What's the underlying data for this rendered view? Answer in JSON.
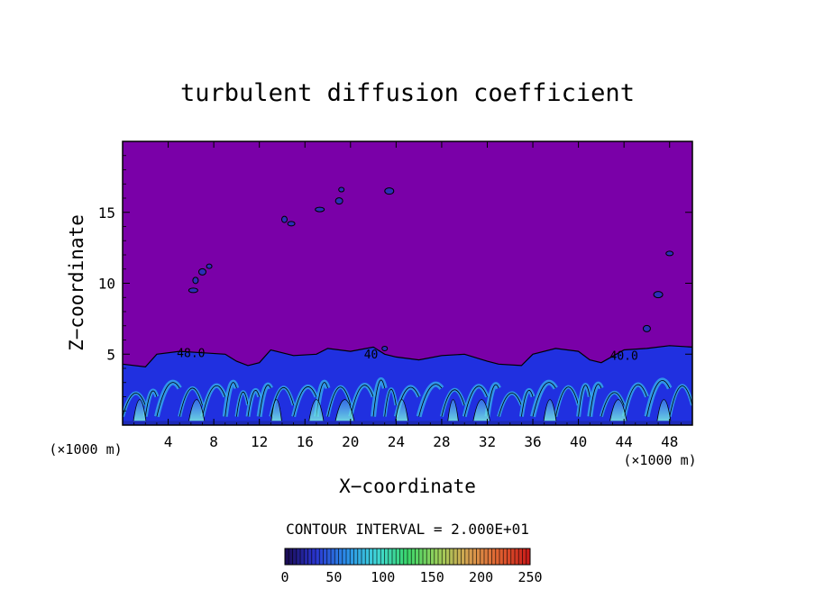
{
  "chart_data": {
    "type": "heatmap",
    "title": "turbulent diffusion coefficient",
    "xlabel": "X−coordinate",
    "ylabel": "Z−coordinate",
    "x_unit_left": "(×1000 m)",
    "x_unit_right": "(×1000 m)",
    "xlim": [
      0,
      50
    ],
    "ylim": [
      0,
      20
    ],
    "x_ticks": [
      4,
      8,
      12,
      16,
      20,
      24,
      28,
      32,
      36,
      40,
      44,
      48
    ],
    "x_tick_labels": [
      "4",
      "8",
      "12",
      "16",
      "20",
      "24",
      "28",
      "32",
      "36",
      "40",
      "44",
      "48"
    ],
    "y_ticks": [
      5,
      10,
      15
    ],
    "y_tick_labels": [
      "5",
      "10",
      "15"
    ],
    "contour_interval_text": "CONTOUR INTERVAL = 2.000E+01",
    "colorbar": {
      "min": 0,
      "max": 250,
      "ticks": [
        0,
        50,
        100,
        150,
        200,
        250
      ],
      "tick_labels": [
        "0",
        "50",
        "100",
        "150",
        "200",
        "250"
      ],
      "gradient_colors": [
        "#1a0a50",
        "#2a35d0",
        "#2b8ee8",
        "#40d8d8",
        "#3ad66a",
        "#9ad05a",
        "#d8a050",
        "#e06030",
        "#c81818"
      ]
    },
    "background_color": "#7a00a8",
    "field_low_color": "#2030e0",
    "field_mid_color": "#36b6ec",
    "contour_labels": [
      {
        "text": "48.0",
        "x": 6.0,
        "z": 4.8
      },
      {
        "text": "40",
        "x": 21.8,
        "z": 4.7
      },
      {
        "text": "40.0",
        "x": 44.0,
        "z": 4.6
      }
    ],
    "turbulent_layer": {
      "base_top_km": 4.3,
      "top_profile": [
        [
          0,
          4.3
        ],
        [
          2,
          4.1
        ],
        [
          3,
          5.0
        ],
        [
          5,
          5.2
        ],
        [
          7,
          5.1
        ],
        [
          9,
          5.0
        ],
        [
          10,
          4.5
        ],
        [
          11,
          4.2
        ],
        [
          12,
          4.4
        ],
        [
          13,
          5.3
        ],
        [
          15,
          4.9
        ],
        [
          17,
          5.0
        ],
        [
          18,
          5.4
        ],
        [
          20,
          5.2
        ],
        [
          22,
          5.5
        ],
        [
          23,
          5.0
        ],
        [
          24,
          4.8
        ],
        [
          26,
          4.6
        ],
        [
          28,
          4.9
        ],
        [
          30,
          5.0
        ],
        [
          32,
          4.5
        ],
        [
          33,
          4.3
        ],
        [
          35,
          4.2
        ],
        [
          36,
          5.0
        ],
        [
          38,
          5.4
        ],
        [
          40,
          5.2
        ],
        [
          41,
          4.6
        ],
        [
          42,
          4.4
        ],
        [
          44,
          5.3
        ],
        [
          46,
          5.4
        ],
        [
          48,
          5.6
        ],
        [
          50,
          5.5
        ]
      ],
      "bright_plumes": [
        {
          "x": 1.5,
          "w": 1.2
        },
        {
          "x": 6.5,
          "w": 1.5
        },
        {
          "x": 13.5,
          "w": 1.0
        },
        {
          "x": 17.0,
          "w": 1.4
        },
        {
          "x": 19.5,
          "w": 1.8
        },
        {
          "x": 24.5,
          "w": 1.2
        },
        {
          "x": 29.0,
          "w": 1.0
        },
        {
          "x": 31.5,
          "w": 1.6
        },
        {
          "x": 37.5,
          "w": 1.2
        },
        {
          "x": 43.5,
          "w": 1.6
        },
        {
          "x": 47.5,
          "w": 1.3
        }
      ]
    },
    "upper_blobs": [
      {
        "x": 19.2,
        "z": 16.6
      },
      {
        "x": 19.0,
        "z": 15.8
      },
      {
        "x": 17.3,
        "z": 15.2
      },
      {
        "x": 14.2,
        "z": 14.5
      },
      {
        "x": 14.8,
        "z": 14.2
      },
      {
        "x": 23.4,
        "z": 16.5
      },
      {
        "x": 7.6,
        "z": 11.2
      },
      {
        "x": 7.0,
        "z": 10.8
      },
      {
        "x": 6.2,
        "z": 9.5
      },
      {
        "x": 6.4,
        "z": 10.2
      },
      {
        "x": 48.0,
        "z": 12.1
      },
      {
        "x": 47.0,
        "z": 9.2
      },
      {
        "x": 23.0,
        "z": 5.4
      },
      {
        "x": 46.0,
        "z": 6.8
      }
    ]
  }
}
